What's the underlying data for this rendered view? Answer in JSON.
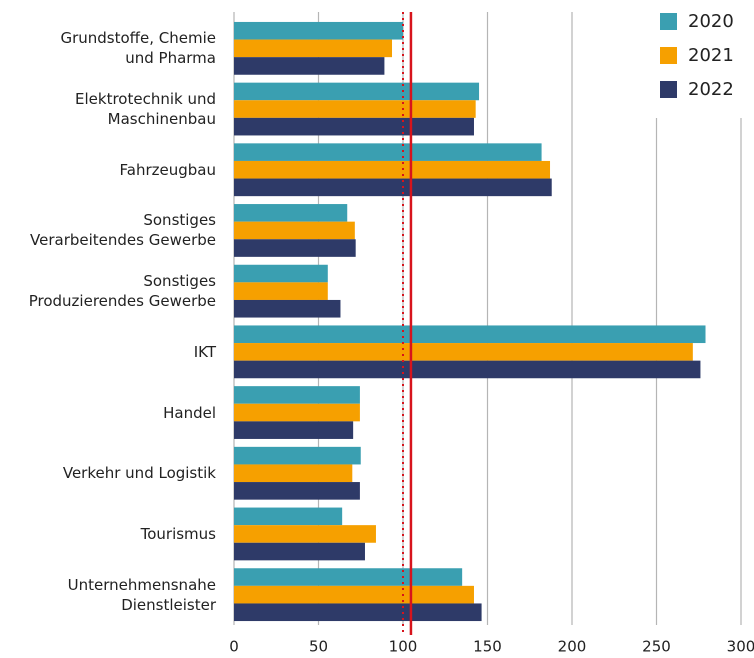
{
  "chart_data": {
    "type": "bar",
    "orientation": "horizontal",
    "categories": [
      "Grundstoffe, Chemie\nund Pharma",
      "Elektrotechnik und\nMaschinenbau",
      "Fahrzeugbau",
      "Sonstiges\nVerarbeitendes Gewerbe",
      "Sonstiges\nProduzierendes Gewerbe",
      "IKT",
      "Handel",
      "Verkehr und Logistik",
      "Tourismus",
      "Unternehmensnahe\nDienstleister"
    ],
    "series": [
      {
        "name": "2020",
        "color": "#3a9fb1",
        "values": [
          100,
          145,
          182,
          67,
          55.5,
          279,
          74.5,
          75,
          64,
          135
        ]
      },
      {
        "name": "2021",
        "color": "#f6a000",
        "values": [
          93.5,
          143,
          187,
          71.5,
          55.5,
          271.5,
          74.5,
          70,
          84,
          142
        ]
      },
      {
        "name": "2022",
        "color": "#2e3a68",
        "values": [
          89,
          142,
          188,
          72,
          63,
          276,
          70.5,
          74.5,
          77.5,
          146.5
        ]
      }
    ],
    "xlim": [
      0,
      300
    ],
    "xticks": [
      0,
      50,
      100,
      150,
      200,
      250,
      300
    ],
    "grid": true,
    "legend": "top-right",
    "reference_lines": [
      {
        "value": 100,
        "style": "dotted",
        "color": "#d7141c"
      },
      {
        "value": 104.7,
        "style": "solid",
        "color": "#d7141c"
      }
    ]
  }
}
